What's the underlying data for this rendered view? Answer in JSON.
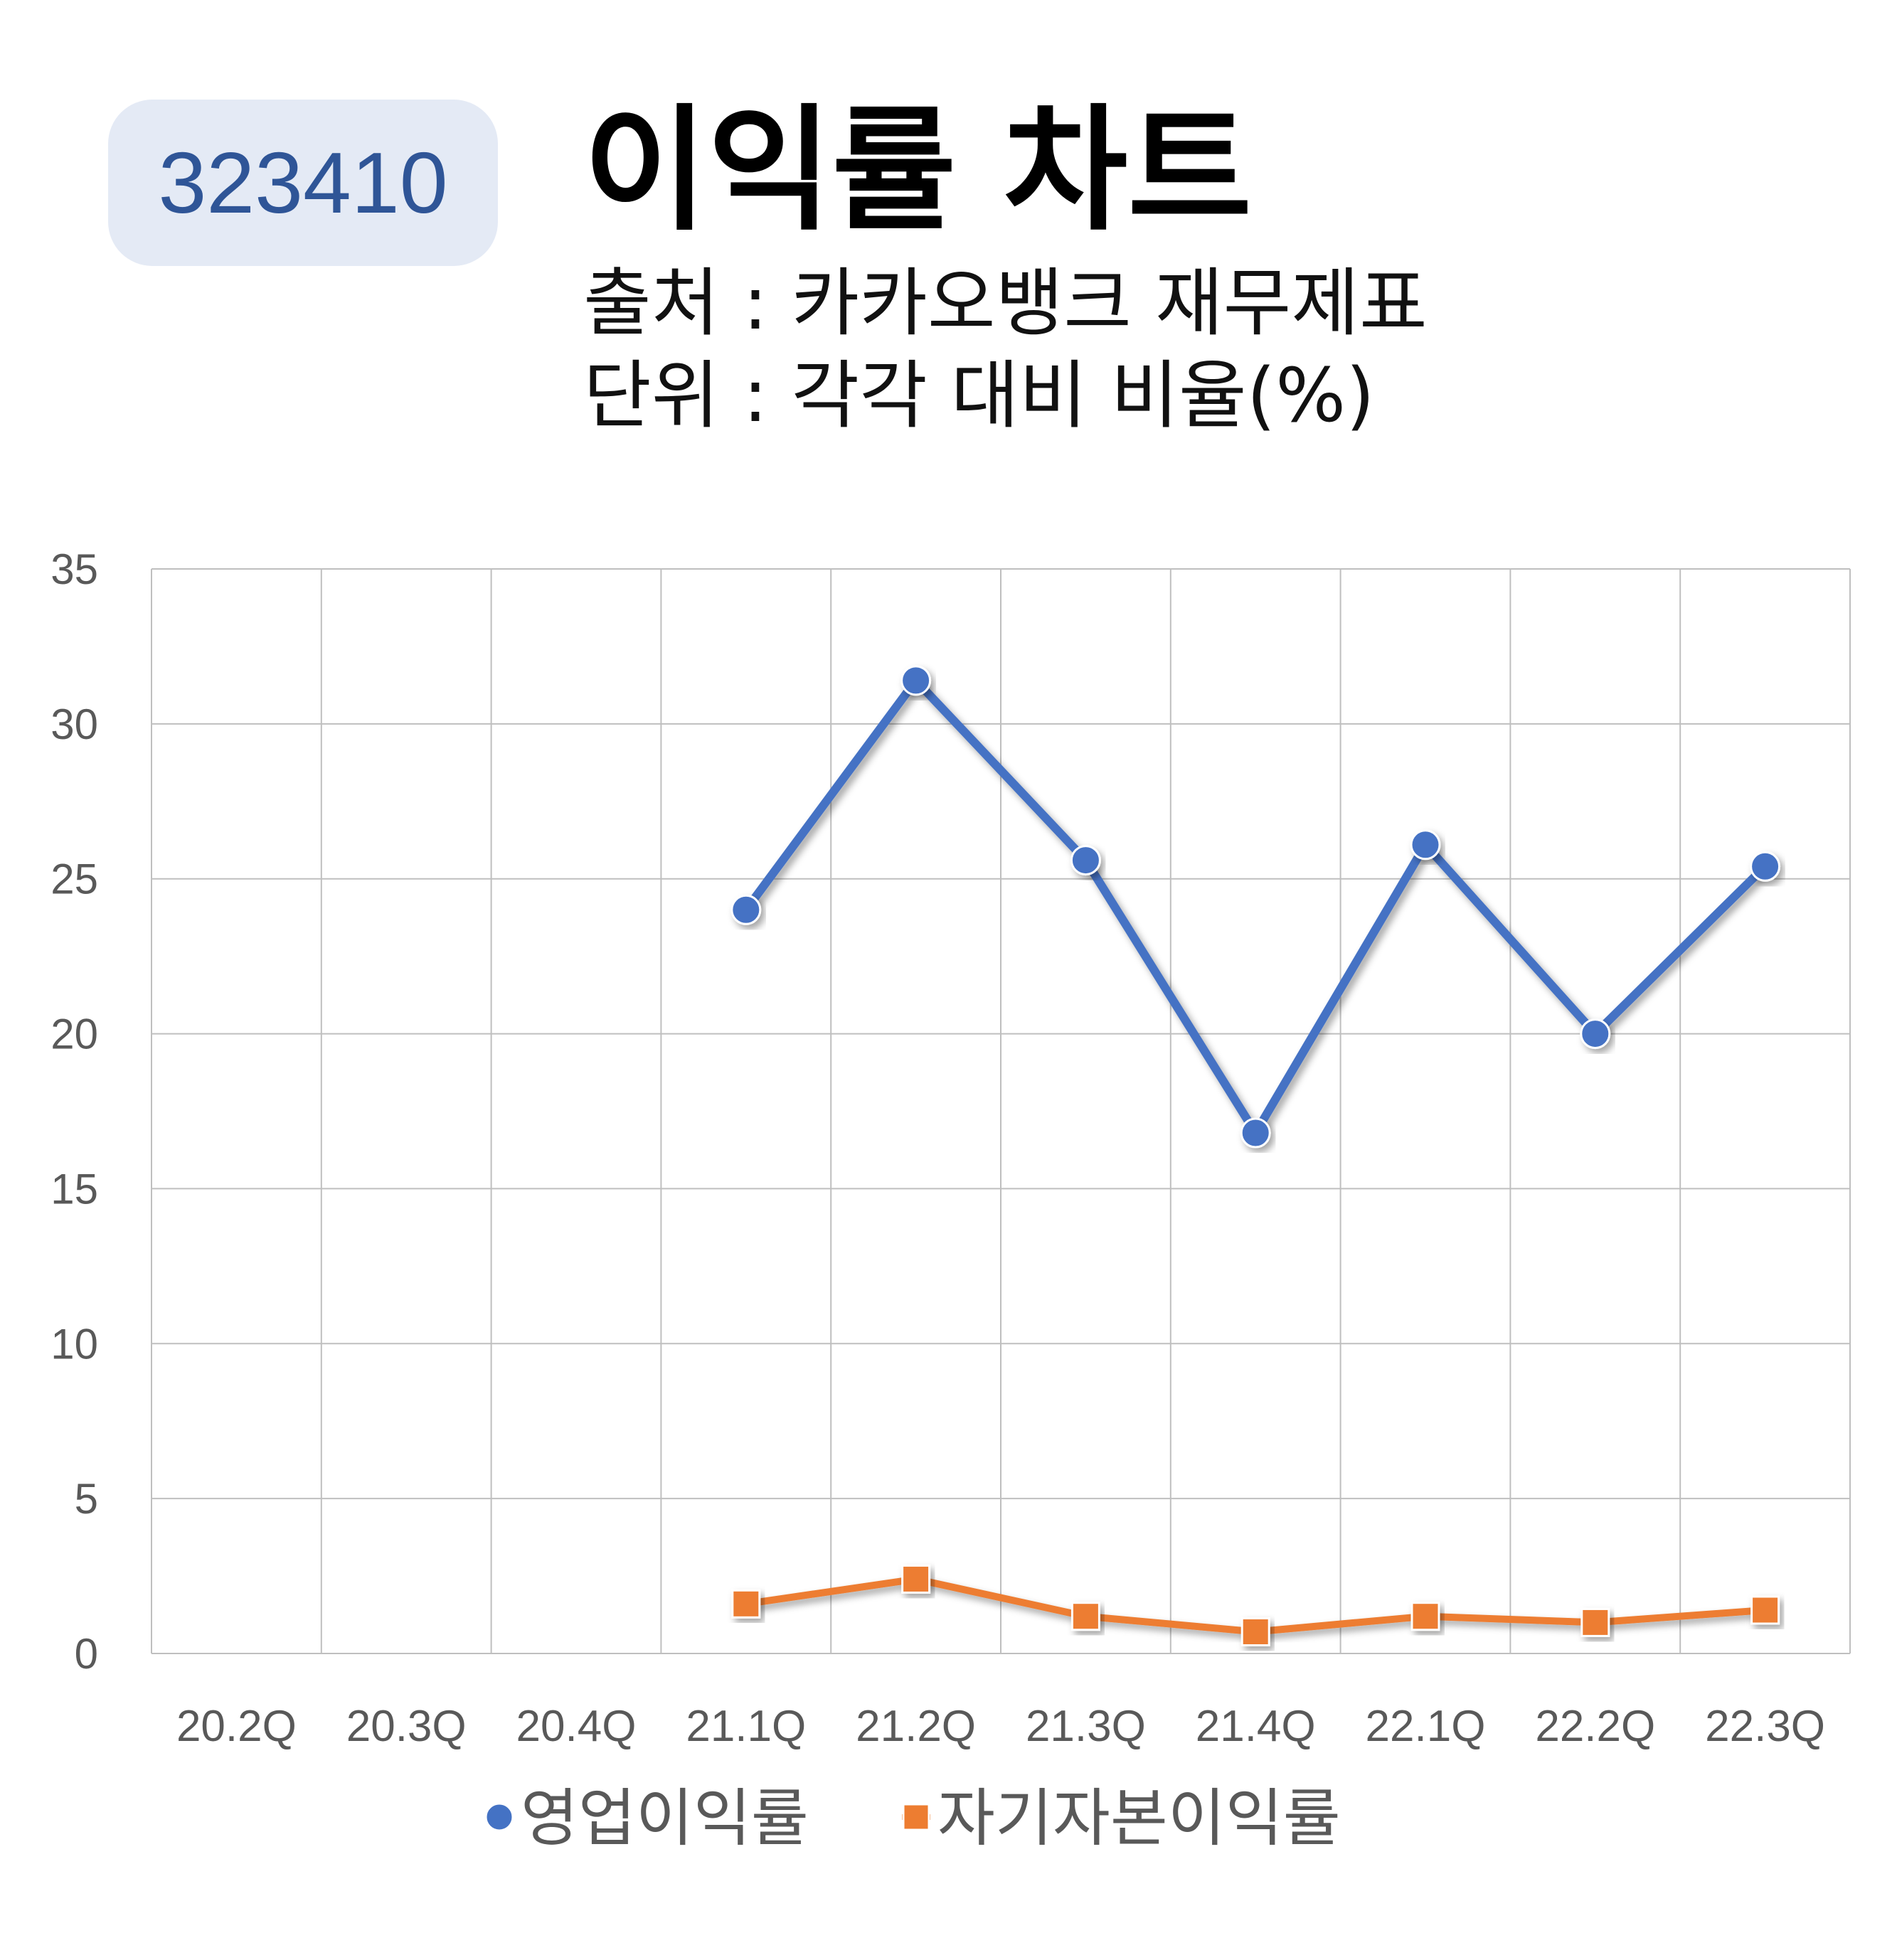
{
  "header": {
    "code": "323410",
    "title": "이익률 차트",
    "source_line": "출처 : 카카오뱅크 재무제표",
    "unit_line": "단위 : 각각 대비 비율(%)"
  },
  "chart_data": {
    "type": "line",
    "categories": [
      "20.2Q",
      "20.3Q",
      "20.4Q",
      "21.1Q",
      "21.2Q",
      "21.3Q",
      "21.4Q",
      "22.1Q",
      "22.2Q",
      "22.3Q"
    ],
    "ylim": [
      0,
      35
    ],
    "yticks": [
      0,
      5,
      10,
      15,
      20,
      25,
      30,
      35
    ],
    "grid": true,
    "legend_position": "bottom",
    "series": [
      {
        "name": "영업이익률",
        "color": "#4472c4",
        "marker": "circle",
        "values": [
          null,
          null,
          null,
          24.0,
          31.4,
          25.6,
          16.8,
          26.1,
          20.0,
          25.4
        ]
      },
      {
        "name": "자기자본이익률",
        "color": "#ed7d31",
        "marker": "square",
        "values": [
          null,
          null,
          null,
          1.6,
          2.4,
          1.2,
          0.7,
          1.2,
          1.0,
          1.4
        ]
      }
    ]
  }
}
